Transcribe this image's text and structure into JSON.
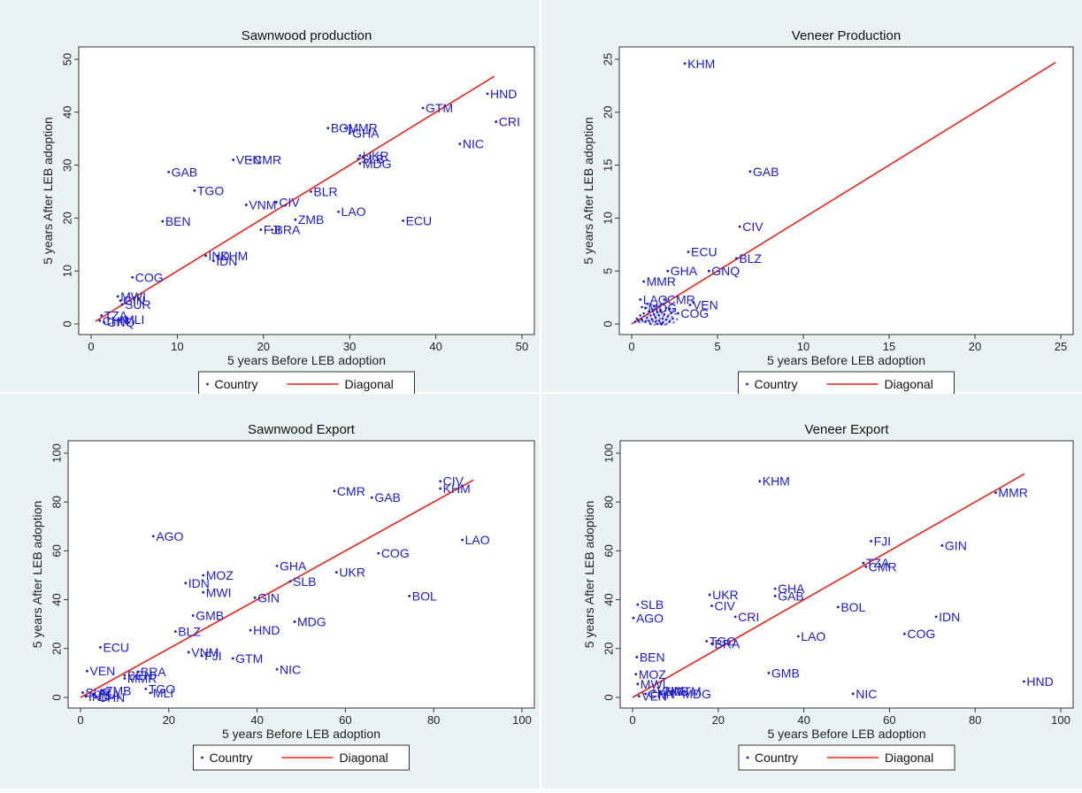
{
  "legend_labels": {
    "country": "Country",
    "diagonal": "Diagonal"
  },
  "chart_data": [
    {
      "type": "scatter",
      "title": "Sawnwood production",
      "xlabel": "5 years Before LEB adoption",
      "ylabel": "5 years After LEB adoption",
      "xlim": [
        0,
        50
      ],
      "ylim": [
        0,
        50
      ],
      "xticks": [
        0,
        10,
        20,
        30,
        40,
        50
      ],
      "yticks": [
        0,
        10,
        20,
        30,
        40,
        50
      ],
      "diagonal": [
        0.5,
        46.8
      ],
      "legend": [
        "Country",
        "Diagonal"
      ],
      "legend_position": "bottom",
      "colors": {
        "points": "#1a1acc",
        "diagonal": "#e8231c",
        "plot_bg": "#ffffff",
        "outer_bg": "#eaf2f3"
      },
      "points": [
        {
          "label": "HND",
          "x": 46.0,
          "y": 43.5
        },
        {
          "label": "CRI",
          "x": 47.0,
          "y": 38.2
        },
        {
          "label": "GTM",
          "x": 38.5,
          "y": 40.8
        },
        {
          "label": "NIC",
          "x": 42.8,
          "y": 34.0
        },
        {
          "label": "BOL",
          "x": 27.5,
          "y": 37.0
        },
        {
          "label": "MMR",
          "x": 29.5,
          "y": 37.0
        },
        {
          "label": "GHA",
          "x": 30.0,
          "y": 36.0
        },
        {
          "label": "UKR",
          "x": 31.2,
          "y": 31.8
        },
        {
          "label": "SLB",
          "x": 31.0,
          "y": 31.2
        },
        {
          "label": "MDG",
          "x": 31.2,
          "y": 30.3
        },
        {
          "label": "VEN",
          "x": 16.5,
          "y": 31.0
        },
        {
          "label": "CMR",
          "x": 18.5,
          "y": 31.0
        },
        {
          "label": "GAB",
          "x": 9.0,
          "y": 28.7
        },
        {
          "label": "TGO",
          "x": 12.0,
          "y": 25.2
        },
        {
          "label": "BLR",
          "x": 25.5,
          "y": 25.0
        },
        {
          "label": "VNM",
          "x": 18.0,
          "y": 22.5
        },
        {
          "label": "CIV",
          "x": 21.5,
          "y": 23.0
        },
        {
          "label": "LAO",
          "x": 28.7,
          "y": 21.2
        },
        {
          "label": "ZMB",
          "x": 23.7,
          "y": 19.7
        },
        {
          "label": "ECU",
          "x": 36.2,
          "y": 19.5
        },
        {
          "label": "BEN",
          "x": 8.3,
          "y": 19.4
        },
        {
          "label": "FJI",
          "x": 19.7,
          "y": 17.8
        },
        {
          "label": "BRA",
          "x": 21.0,
          "y": 17.8
        },
        {
          "label": "IND",
          "x": 13.3,
          "y": 12.9
        },
        {
          "label": "KHM",
          "x": 14.7,
          "y": 12.9
        },
        {
          "label": "IDN",
          "x": 14.2,
          "y": 11.9
        },
        {
          "label": "COG",
          "x": 4.8,
          "y": 8.8
        },
        {
          "label": "MWI",
          "x": 3.1,
          "y": 5.2
        },
        {
          "label": "GIN",
          "x": 3.4,
          "y": 4.4
        },
        {
          "label": "SUR",
          "x": 3.6,
          "y": 3.7
        },
        {
          "label": "TZA",
          "x": 1.2,
          "y": 1.6
        },
        {
          "label": "CHN",
          "x": 1.0,
          "y": 0.6
        },
        {
          "label": "GNQ",
          "x": 1.5,
          "y": 0.3
        },
        {
          "label": "MLI",
          "x": 3.5,
          "y": 0.8
        }
      ]
    },
    {
      "type": "scatter",
      "title": "Veneer Production",
      "xlabel": "5 years Before LEB adoption",
      "ylabel": "5 years After LEB adoption",
      "xlim": [
        0,
        25
      ],
      "ylim": [
        0,
        25
      ],
      "xticks": [
        0,
        5,
        10,
        15,
        20,
        25
      ],
      "yticks": [
        0,
        5,
        10,
        15,
        20,
        25
      ],
      "diagonal": [
        0,
        24.7
      ],
      "legend": [
        "Country",
        "Diagonal"
      ],
      "legend_position": "bottom",
      "colors": {
        "points": "#1a1acc",
        "diagonal": "#e8231c",
        "plot_bg": "#ffffff",
        "outer_bg": "#eaf2f3"
      },
      "points": [
        {
          "label": "KHM",
          "x": 3.1,
          "y": 24.6
        },
        {
          "label": "GAB",
          "x": 6.9,
          "y": 14.4
        },
        {
          "label": "CIV",
          "x": 6.3,
          "y": 9.2
        },
        {
          "label": "ECU",
          "x": 3.3,
          "y": 6.8
        },
        {
          "label": "BLZ",
          "x": 6.1,
          "y": 6.2
        },
        {
          "label": "GHA",
          "x": 2.1,
          "y": 5.0
        },
        {
          "label": "GNQ",
          "x": 4.5,
          "y": 5.0
        },
        {
          "label": "MMR",
          "x": 0.7,
          "y": 4.0
        },
        {
          "label": "LAO",
          "x": 0.5,
          "y": 2.3
        },
        {
          "label": "CMR",
          "x": 1.9,
          "y": 2.3
        },
        {
          "label": "VEN",
          "x": 3.4,
          "y": 1.8
        },
        {
          "label": "MDG",
          "x": 0.8,
          "y": 1.5
        },
        {
          "label": "COG",
          "x": 2.7,
          "y": 1.0
        }
      ],
      "cluster": [
        [
          0.2,
          0.2
        ],
        [
          0.3,
          0.5
        ],
        [
          0.4,
          0.3
        ],
        [
          0.5,
          0.8
        ],
        [
          0.6,
          0.4
        ],
        [
          0.7,
          1.0
        ],
        [
          0.8,
          0.2
        ],
        [
          0.9,
          0.6
        ],
        [
          1.0,
          1.2
        ],
        [
          1.0,
          0.3
        ],
        [
          1.1,
          0.8
        ],
        [
          1.2,
          0.4
        ],
        [
          1.2,
          1.4
        ],
        [
          1.3,
          0.9
        ],
        [
          1.4,
          0.2
        ],
        [
          1.4,
          0.6
        ],
        [
          1.5,
          1.1
        ],
        [
          1.6,
          0.3
        ],
        [
          1.6,
          0.8
        ],
        [
          1.7,
          1.3
        ],
        [
          1.8,
          0.5
        ],
        [
          1.8,
          0.1
        ],
        [
          1.9,
          0.9
        ],
        [
          2.0,
          0.4
        ],
        [
          2.0,
          1.5
        ],
        [
          2.1,
          0.7
        ],
        [
          2.2,
          0.2
        ],
        [
          2.3,
          1.0
        ],
        [
          1.3,
          1.7
        ],
        [
          0.9,
          1.9
        ],
        [
          1.5,
          0.0
        ],
        [
          2.4,
          0.5
        ],
        [
          1.1,
          0.0
        ],
        [
          0.6,
          1.6
        ],
        [
          1.7,
          0.0
        ],
        [
          2.2,
          1.4
        ]
      ]
    },
    {
      "type": "scatter",
      "title": "Sawnwood Export",
      "xlabel": "5 years Before LEB adoption",
      "ylabel": "5 years After LEB adoption",
      "xlim": [
        0,
        100
      ],
      "ylim": [
        0,
        100
      ],
      "xticks": [
        0,
        20,
        40,
        60,
        80,
        100
      ],
      "yticks": [
        0,
        20,
        40,
        60,
        80,
        100
      ],
      "diagonal": [
        0,
        89
      ],
      "legend": [
        "Country",
        "Diagonal"
      ],
      "legend_position": "bottom",
      "colors": {
        "points": "#1a1acc",
        "diagonal": "#e8231c",
        "plot_bg": "#ffffff",
        "outer_bg": "#eaf2f3"
      },
      "points": [
        {
          "label": "CIV",
          "x": 81.5,
          "y": 88.5
        },
        {
          "label": "KHM",
          "x": 81.5,
          "y": 85.5
        },
        {
          "label": "CMR",
          "x": 57.5,
          "y": 84.5
        },
        {
          "label": "GAB",
          "x": 66.0,
          "y": 81.8
        },
        {
          "label": "AGO",
          "x": 16.5,
          "y": 66.0
        },
        {
          "label": "LAO",
          "x": 86.5,
          "y": 64.5
        },
        {
          "label": "COG",
          "x": 67.5,
          "y": 59.0
        },
        {
          "label": "GHA",
          "x": 44.5,
          "y": 53.8
        },
        {
          "label": "UKR",
          "x": 58.0,
          "y": 51.2
        },
        {
          "label": "MOZ",
          "x": 27.8,
          "y": 50.0
        },
        {
          "label": "SLB",
          "x": 47.5,
          "y": 47.5
        },
        {
          "label": "IDN",
          "x": 23.8,
          "y": 46.8
        },
        {
          "label": "MWI",
          "x": 27.8,
          "y": 43.0
        },
        {
          "label": "BOL",
          "x": 74.5,
          "y": 41.5
        },
        {
          "label": "GIN",
          "x": 39.5,
          "y": 40.8
        },
        {
          "label": "GMB",
          "x": 25.5,
          "y": 33.5
        },
        {
          "label": "MDG",
          "x": 48.5,
          "y": 31.0
        },
        {
          "label": "HND",
          "x": 38.5,
          "y": 27.5
        },
        {
          "label": "BLZ",
          "x": 21.5,
          "y": 27.0
        },
        {
          "label": "ECU",
          "x": 4.5,
          "y": 20.5
        },
        {
          "label": "VNM",
          "x": 24.5,
          "y": 18.5
        },
        {
          "label": "FJI",
          "x": 27.5,
          "y": 17.0
        },
        {
          "label": "GTM",
          "x": 34.5,
          "y": 16.0
        },
        {
          "label": "NIC",
          "x": 44.5,
          "y": 11.5
        },
        {
          "label": "VEN",
          "x": 1.5,
          "y": 10.8
        },
        {
          "label": "BRA",
          "x": 13.0,
          "y": 10.5
        },
        {
          "label": "BEN",
          "x": 10.0,
          "y": 9.0
        },
        {
          "label": "MMR",
          "x": 10.0,
          "y": 7.8
        },
        {
          "label": "TGO",
          "x": 14.8,
          "y": 3.5
        },
        {
          "label": "MLI",
          "x": 15.8,
          "y": 1.8
        },
        {
          "label": "SUR",
          "x": 0.5,
          "y": 2.0
        },
        {
          "label": "TZA",
          "x": 3.0,
          "y": 1.0
        },
        {
          "label": "ZMB",
          "x": 5.0,
          "y": 2.8
        },
        {
          "label": "IND",
          "x": 1.2,
          "y": 0.4
        },
        {
          "label": "CHN",
          "x": 3.4,
          "y": 0.0
        }
      ]
    },
    {
      "type": "scatter",
      "title": "Veneer Export",
      "xlabel": "5 years Before LEB adoption",
      "ylabel": "5 years After LEB adoption",
      "xlim": [
        0,
        100
      ],
      "ylim": [
        0,
        100
      ],
      "xticks": [
        0,
        20,
        40,
        60,
        80,
        100
      ],
      "yticks": [
        0,
        20,
        40,
        60,
        80,
        100
      ],
      "diagonal": [
        0,
        91.5
      ],
      "legend": [
        "Country",
        "Diagonal"
      ],
      "legend_position": "bottom",
      "colors": {
        "points": "#1a1acc",
        "diagonal": "#e8231c",
        "plot_bg": "#ffffff",
        "outer_bg": "#eaf2f3"
      },
      "points": [
        {
          "label": "KHM",
          "x": 29.7,
          "y": 88.5
        },
        {
          "label": "MMR",
          "x": 84.8,
          "y": 83.8
        },
        {
          "label": "FJI",
          "x": 55.7,
          "y": 64.0
        },
        {
          "label": "GIN",
          "x": 72.3,
          "y": 62.2
        },
        {
          "label": "TZA",
          "x": 53.9,
          "y": 55.0
        },
        {
          "label": "CMR",
          "x": 54.5,
          "y": 53.5
        },
        {
          "label": "GHA",
          "x": 33.3,
          "y": 44.5
        },
        {
          "label": "UKR",
          "x": 18.0,
          "y": 42.0
        },
        {
          "label": "GAB",
          "x": 33.3,
          "y": 41.5
        },
        {
          "label": "SLB",
          "x": 1.2,
          "y": 38.0
        },
        {
          "label": "CIV",
          "x": 18.5,
          "y": 37.5
        },
        {
          "label": "BOL",
          "x": 48.0,
          "y": 37.0
        },
        {
          "label": "AGO",
          "x": 0.2,
          "y": 32.5
        },
        {
          "label": "CRI",
          "x": 24.0,
          "y": 33.0
        },
        {
          "label": "IDN",
          "x": 70.9,
          "y": 33.0
        },
        {
          "label": "LAO",
          "x": 38.7,
          "y": 25.0
        },
        {
          "label": "COG",
          "x": 63.5,
          "y": 26.0
        },
        {
          "label": "TGO",
          "x": 17.3,
          "y": 23.0
        },
        {
          "label": "BRA",
          "x": 18.5,
          "y": 22.0
        },
        {
          "label": "BEN",
          "x": 1.0,
          "y": 16.5
        },
        {
          "label": "GMB",
          "x": 31.8,
          "y": 10.0
        },
        {
          "label": "MOZ",
          "x": 0.8,
          "y": 9.5
        },
        {
          "label": "HND",
          "x": 91.4,
          "y": 6.5
        },
        {
          "label": "MWI",
          "x": 1.2,
          "y": 5.5
        },
        {
          "label": "NIC",
          "x": 51.5,
          "y": 1.5
        },
        {
          "label": "MDG",
          "x": 11.0,
          "y": 1.5
        },
        {
          "label": "GTM",
          "x": 9.0,
          "y": 2.5
        },
        {
          "label": "ZMB",
          "x": 6.5,
          "y": 2.5
        },
        {
          "label": "VEN",
          "x": 1.5,
          "y": 0.5
        },
        {
          "label": "CHN",
          "x": 3.0,
          "y": 1.5
        },
        {
          "label": "VNM",
          "x": 5.0,
          "y": 2.8
        }
      ]
    }
  ]
}
